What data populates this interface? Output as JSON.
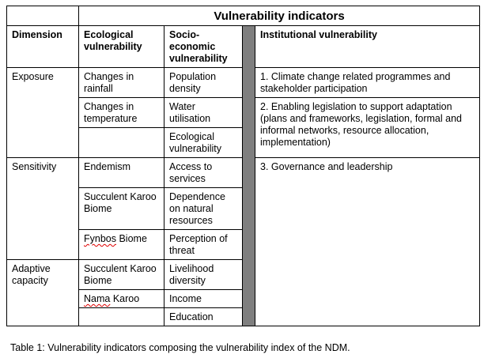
{
  "title": "Vulnerability indicators",
  "headers": {
    "dimension": "Dimension",
    "ecological": "Ecological vulnerability",
    "socio": "Socio-economic vulnerability",
    "institutional": "Institutional vulnerability"
  },
  "rows": {
    "exposure": {
      "dimension": "Exposure",
      "ecological": [
        "Changes in rainfall",
        "Changes in temperature",
        ""
      ],
      "socio": [
        "Population density",
        "Water utilisation",
        "Ecological vulnerability"
      ],
      "institutional": [
        "1. Climate change related programmes and stakeholder participation",
        "2. Enabling legislation to support adaptation (plans and frameworks, legislation, formal and informal networks, resource allocation, implementation)"
      ]
    },
    "sensitivity": {
      "dimension": "Sensitivity",
      "ecological": [
        "Endemism",
        "Succulent Karoo Biome",
        "Fynbos Biome"
      ],
      "ecological_flagged_word": "Fynbos",
      "ecological_rest": " Biome",
      "socio": [
        "Access to services",
        "Dependence on natural resources",
        "Perception of threat"
      ],
      "institutional": [
        "3. Governance and leadership"
      ]
    },
    "adaptive": {
      "dimension": "Adaptive capacity",
      "ecological": [
        "Succulent Karoo Biome",
        "Nama Karoo",
        ""
      ],
      "ecological_flagged_word": "Nama",
      "ecological_rest": " Karoo",
      "socio": [
        "Livelihood diversity",
        "Income",
        "Education"
      ]
    }
  },
  "caption": "Table 1: Vulnerability indicators composing the vulnerability index of the NDM.",
  "colors": {
    "separator": "#7f7f7f",
    "spellcheck": "#e00000"
  }
}
